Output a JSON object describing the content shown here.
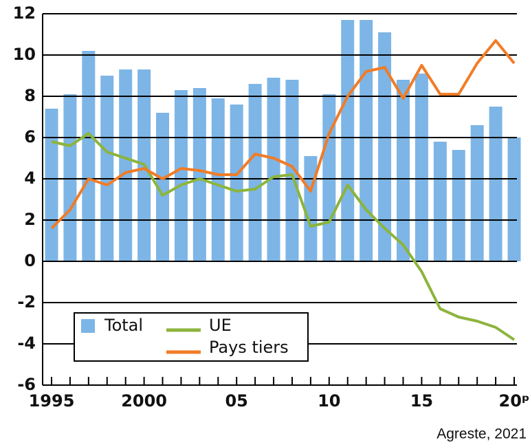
{
  "chart_data": {
    "type": "bar",
    "categories": [
      "1995",
      null,
      null,
      null,
      null,
      "2000",
      null,
      null,
      null,
      null,
      "05",
      null,
      null,
      null,
      null,
      "10",
      null,
      null,
      null,
      null,
      "15",
      null,
      null,
      null,
      null,
      "20ᵖ"
    ],
    "series": [
      {
        "name": "Total",
        "type": "bar",
        "color": "#7db5e6",
        "values": [
          7.4,
          8.1,
          10.2,
          9.0,
          9.3,
          9.3,
          7.2,
          8.3,
          8.4,
          7.9,
          7.6,
          8.6,
          8.9,
          8.8,
          5.1,
          8.1,
          11.7,
          11.7,
          11.1,
          8.8,
          9.1,
          5.8,
          5.4,
          6.6,
          7.5,
          6.0
        ]
      },
      {
        "name": "UE",
        "type": "line",
        "color": "#8cb43c",
        "values": [
          5.8,
          5.6,
          6.2,
          5.3,
          5.0,
          4.7,
          3.2,
          3.7,
          4.0,
          3.7,
          3.4,
          3.5,
          4.1,
          4.2,
          1.7,
          1.9,
          3.7,
          2.5,
          1.6,
          0.8,
          -0.5,
          -2.3,
          -2.7,
          -2.9,
          -3.2,
          -3.8
        ]
      },
      {
        "name": "Pays tiers",
        "type": "line",
        "color": "#f07c27",
        "values": [
          1.6,
          2.5,
          4.0,
          3.7,
          4.3,
          4.5,
          4.0,
          4.5,
          4.4,
          4.2,
          4.2,
          5.2,
          5.0,
          4.6,
          3.4,
          6.2,
          8.0,
          9.2,
          9.4,
          7.9,
          9.5,
          8.1,
          8.1,
          9.6,
          10.7,
          9.6
        ]
      }
    ],
    "ylim": [
      -6,
      12
    ],
    "yticks": [
      -6,
      -4,
      -2,
      0,
      2,
      4,
      6,
      8,
      10,
      12
    ],
    "grid": true,
    "legend": "lower-left",
    "source": "Agreste, 2021"
  }
}
